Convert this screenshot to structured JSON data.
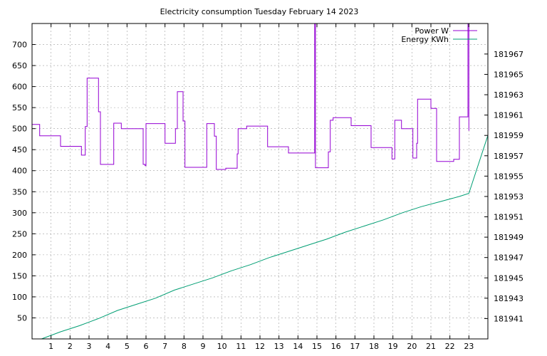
{
  "chart_data": {
    "type": "line",
    "title": "Electricity consumption Tuesday February 14 2023",
    "xlabel": "",
    "ylabel": "",
    "y2label": "",
    "xlim": [
      0,
      24
    ],
    "ylim": [
      0,
      750
    ],
    "y2lim": [
      181939,
      181970
    ],
    "x_ticks": [
      "1",
      "2",
      "3",
      "4",
      "5",
      "6",
      "7",
      "8",
      "9",
      "10",
      "11",
      "12",
      "13",
      "14",
      "15",
      "16",
      "17",
      "18",
      "19",
      "20",
      "21",
      "22",
      "23"
    ],
    "y_ticks": [
      "50",
      "100",
      "150",
      "200",
      "250",
      "300",
      "350",
      "400",
      "450",
      "500",
      "550",
      "600",
      "650",
      "700"
    ],
    "y2_ticks": [
      "181941",
      "181943",
      "181945",
      "181947",
      "181949",
      "181951",
      "181953",
      "181955",
      "181957",
      "181959",
      "181961",
      "181963",
      "181965",
      "181967"
    ],
    "grid": true,
    "legend": "top-right",
    "series": [
      {
        "name": "Power W",
        "color": "#9400d3",
        "axis": "y",
        "step": true,
        "points": [
          [
            0,
            510
          ],
          [
            0.4,
            483
          ],
          [
            1.5,
            458
          ],
          [
            2.6,
            437
          ],
          [
            2.8,
            505
          ],
          [
            2.9,
            620
          ],
          [
            3.5,
            540
          ],
          [
            3.6,
            415
          ],
          [
            4.3,
            513
          ],
          [
            4.7,
            500
          ],
          [
            5.85,
            415
          ],
          [
            5.95,
            412
          ],
          [
            6.0,
            512
          ],
          [
            7.0,
            465
          ],
          [
            7.55,
            500
          ],
          [
            7.65,
            588
          ],
          [
            7.95,
            518
          ],
          [
            8.05,
            408
          ],
          [
            9.2,
            512
          ],
          [
            9.6,
            482
          ],
          [
            9.7,
            403
          ],
          [
            10.2,
            406
          ],
          [
            10.8,
            440
          ],
          [
            10.85,
            500
          ],
          [
            11.3,
            506
          ],
          [
            12.4,
            457
          ],
          [
            13.5,
            442
          ],
          [
            14.88,
            750
          ],
          [
            14.92,
            407
          ],
          [
            15.6,
            445
          ],
          [
            15.7,
            520
          ],
          [
            15.85,
            526
          ],
          [
            16.8,
            507
          ],
          [
            17.85,
            455
          ],
          [
            18.95,
            428
          ],
          [
            19.1,
            520
          ],
          [
            19.45,
            500
          ],
          [
            20.05,
            430
          ],
          [
            20.25,
            465
          ],
          [
            20.3,
            570
          ],
          [
            21.0,
            548
          ],
          [
            21.3,
            422
          ],
          [
            22.2,
            427
          ],
          [
            22.5,
            528
          ],
          [
            22.95,
            750
          ],
          [
            23.0,
            495
          ]
        ]
      },
      {
        "name": "Energy KWh",
        "color": "#009e73",
        "axis": "y2",
        "step": false,
        "points": [
          [
            0.5,
            181939.0
          ],
          [
            1.5,
            181939.7
          ],
          [
            2.5,
            181940.3
          ],
          [
            3.5,
            181941.0
          ],
          [
            4.5,
            181941.8
          ],
          [
            5.5,
            181942.4
          ],
          [
            6.5,
            181943.0
          ],
          [
            7.5,
            181943.8
          ],
          [
            8.5,
            181944.4
          ],
          [
            9.5,
            181945.0
          ],
          [
            10.5,
            181945.7
          ],
          [
            11.5,
            181946.3
          ],
          [
            12.5,
            181947.0
          ],
          [
            13.5,
            181947.6
          ],
          [
            14.5,
            181948.2
          ],
          [
            15.5,
            181948.8
          ],
          [
            16.5,
            181949.5
          ],
          [
            17.5,
            181950.1
          ],
          [
            18.5,
            181950.7
          ],
          [
            19.5,
            181951.4
          ],
          [
            20.5,
            181952.0
          ],
          [
            21.5,
            181952.5
          ],
          [
            22.5,
            181953.0
          ],
          [
            23.0,
            181953.3
          ],
          [
            24.0,
            181959.0
          ]
        ]
      }
    ]
  }
}
